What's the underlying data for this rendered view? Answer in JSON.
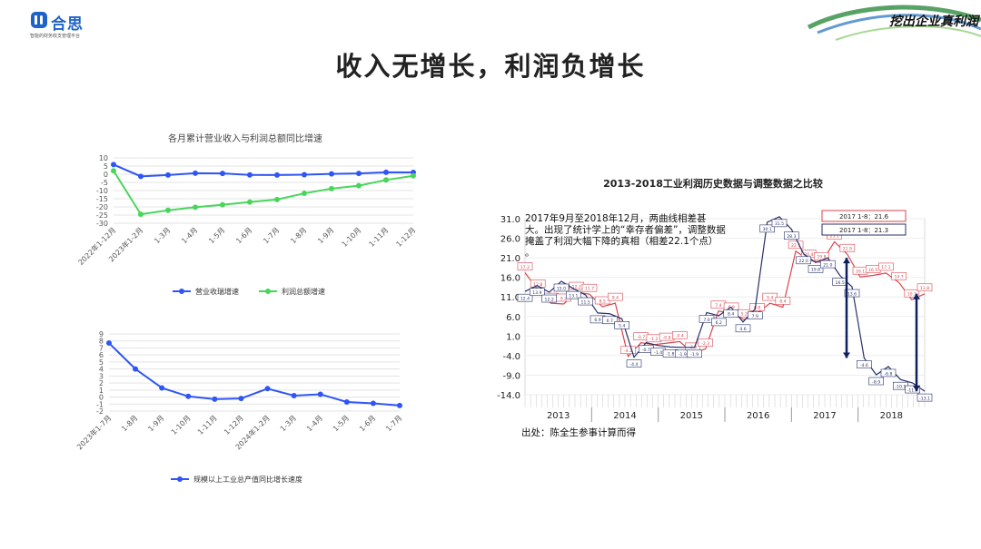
{
  "header": {
    "logo_name": "合思",
    "logo_tagline": "智能的财务收支管理平台",
    "corner_text": "挖出企业真利润",
    "title": "收入无增长，利润负增长"
  },
  "colors": {
    "blue": "#2f55f5",
    "green": "#48d65a",
    "navy": "#27306a",
    "red": "#d8454f",
    "brand": "#1e63c8"
  },
  "chart_data": [
    {
      "type": "line",
      "title": "各月累计营业收入与利润总额同比增速",
      "categories": [
        "2022年1-12月",
        "2023年1-2月",
        "1-3月",
        "1-4月",
        "1-5月",
        "1-6月",
        "1-7月",
        "1-8月",
        "1-9月",
        "1-10月",
        "1-11月",
        "1-12月"
      ],
      "series": [
        {
          "name": "营业收瑞增速",
          "color": "#2f55f5",
          "values": [
            5.9,
            -1.3,
            -0.5,
            0.6,
            0.5,
            -0.4,
            -0.5,
            -0.3,
            0.2,
            0.5,
            1.2,
            1.1
          ]
        },
        {
          "name": "利润总额增速",
          "color": "#48d65a",
          "values": [
            2.1,
            -24.5,
            -22.1,
            -20.2,
            -18.7,
            -17.0,
            -15.5,
            -11.7,
            -8.8,
            -7.0,
            -3.5,
            -1.0
          ]
        }
      ],
      "ylim": [
        -30,
        10
      ],
      "yticks": [
        "10",
        "5",
        "0",
        "-5",
        "-10",
        "-15",
        "-20",
        "-25",
        "-30"
      ],
      "legend": "bottom",
      "grid": true
    },
    {
      "type": "line",
      "title": "",
      "categories": [
        "2023年1-7月",
        "1-8月",
        "1-9月",
        "1-10月",
        "1-11月",
        "1-12月",
        "2024年1-2月",
        "1-3月",
        "1-4月",
        "1-5月",
        "1-6月",
        "1-7月"
      ],
      "series": [
        {
          "name": "规模以上工业总产值同比增长速度",
          "color": "#2f55f5",
          "values": [
            7.7,
            4.0,
            1.3,
            0.1,
            -0.3,
            -0.2,
            1.2,
            0.2,
            0.4,
            -0.7,
            -0.9,
            -1.2
          ]
        }
      ],
      "ylim": [
        -2,
        9
      ],
      "yticks": [
        "9",
        "8",
        "7",
        "6",
        "5",
        "4",
        "3",
        "2",
        "1",
        "0",
        "-1",
        "-2"
      ],
      "legend": "bottom",
      "grid": true
    },
    {
      "type": "line",
      "title": "2013-2018工业利润历史数据与调整数据之比较",
      "ylim": [
        -14,
        31
      ],
      "yticks": [
        "31.0",
        "26.0",
        "21.0",
        "16.0",
        "11.0",
        "6.0",
        "1.0",
        "-4.0",
        "-9.0",
        "-14.0"
      ],
      "xlabels": [
        "2013",
        "2014",
        "2015",
        "2016",
        "2017",
        "2018"
      ],
      "annotation": "2017年9月至2018年12月，两曲线相差甚大。出现了统计学上的“幸存者偏差”，调整数据掩盖了利润大幅下降的真相（相差22.1个点）。",
      "source": "出处：陈全生参事计算而得",
      "grid": true,
      "series": [
        {
          "name": "调整数据",
          "color": "#d8454f",
          "values": [
            17.2,
            12.8,
            9.4,
            9.2,
            12.2,
            11.7,
            8.5,
            9.4,
            -4.2,
            -0.7,
            -1.2,
            -0.8,
            -0.4,
            -3.3,
            -2.3,
            7.4,
            6.9,
            5.2,
            6.8,
            9.4,
            8.4,
            22.7,
            20.4,
            19.8,
            25.1,
            21.9,
            16.1,
            16.5,
            17.1,
            14.7,
            10.3,
            11.8
          ],
          "value_labels": [
            "17.2",
            "12.8",
            "9.4",
            "9.2",
            "12.2",
            "11.7",
            "8.5",
            "9.4",
            "-4.2",
            "-0.7",
            "-1.2",
            "-0.8",
            "-0.4",
            "-3.3",
            "-2.3",
            "7.4",
            "6.9",
            "5.2",
            "6.8",
            "9.4",
            "8.4",
            "22.7",
            "20.4",
            "19.8",
            "25.1",
            "21.9",
            "16.1",
            "16.5",
            "17.1",
            "14.7",
            "10.3",
            "11.8"
          ]
        },
        {
          "name": "历史数据",
          "color": "#27306a",
          "values": [
            12.4,
            13.9,
            12.2,
            15.0,
            13.1,
            11.5,
            6.9,
            6.7,
            5.4,
            -4.4,
            -0.7,
            -1.4,
            -1.8,
            -1.9,
            -1.9,
            7.0,
            6.2,
            8.4,
            4.6,
            7.9,
            30.1,
            31.5,
            28.3,
            22.0,
            19.8,
            21.0,
            16.5,
            13.6,
            -4.6,
            -8.9,
            -6.8,
            -10.1,
            -11.0,
            -13.1
          ],
          "value_labels": [
            "12.4",
            "13.9",
            "12.2",
            "15.0",
            "13.1",
            "11.5",
            "6.9",
            "6.7",
            "5.4",
            "-4.4",
            "-0.7",
            "-1.4",
            "-1.8",
            "-1.9",
            "-1.9",
            "7.0",
            "6.2",
            "8.4",
            "4.6",
            "7.9",
            "30.1",
            "31.5",
            "28.3",
            "22.0",
            "19.8",
            "21.0",
            "16.5",
            "13.6",
            "-4.6",
            "-8.9",
            "-6.8",
            "-10.1",
            "-11.0",
            "-13.1"
          ]
        }
      ],
      "callouts": [
        {
          "label": "2017 1-8：21.6",
          "color": "#d8454f"
        },
        {
          "label": "2017 1-8：21.3",
          "color": "#27306a"
        }
      ]
    }
  ]
}
